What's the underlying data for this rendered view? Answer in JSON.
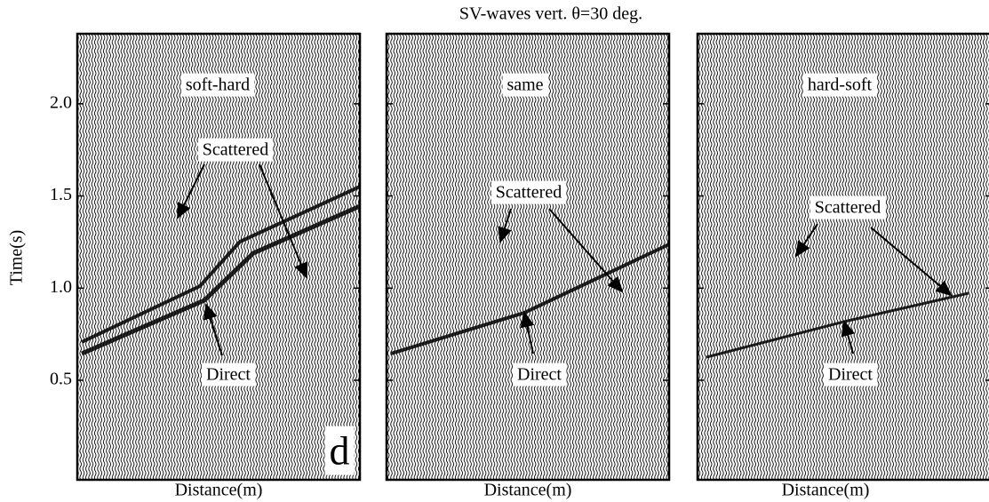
{
  "title": "SV-waves vert. θ=30 deg.",
  "chart_data": [
    {
      "type": "wiggle",
      "panel_label": "soft-hard",
      "x_label": "Distance(m)",
      "y_label": "Time(s)",
      "ylim": [
        -0.04,
        2.38
      ],
      "yticks": [
        0.5,
        {
          "value": 1,
          "label": "1.0"
        },
        1.5,
        {
          "value": 2,
          "label": "2.0"
        }
      ],
      "annotations": [
        "Scattered",
        "Direct"
      ],
      "corner_label": "d"
    },
    {
      "type": "wiggle",
      "panel_label": "same",
      "x_label": "Distance(m)",
      "annotations": [
        "Scattered",
        "Direct"
      ]
    },
    {
      "type": "wiggle",
      "panel_label": "hard-soft",
      "x_label": "Distance(m)",
      "annotations": [
        "Scattered",
        "Direct"
      ]
    }
  ]
}
